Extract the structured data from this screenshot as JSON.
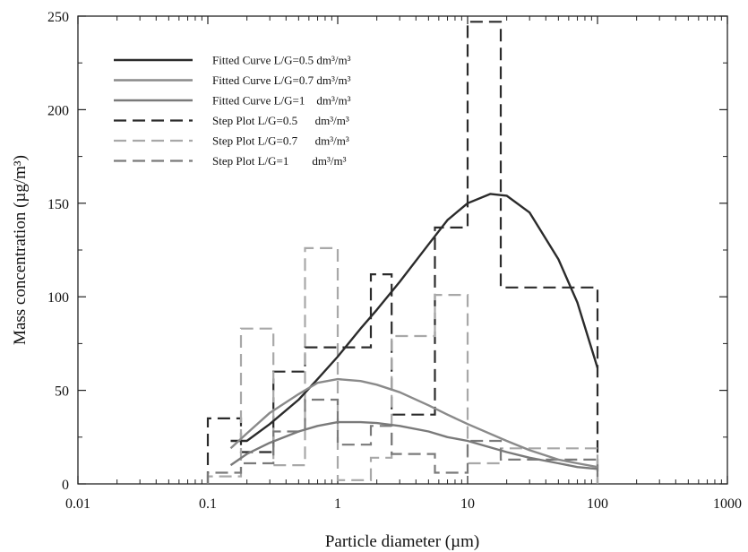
{
  "chart_data": {
    "type": "line",
    "xlabel": "Particle diameter (µm)",
    "ylabel": "Mass concentration (µg/m³)",
    "xscale": "log",
    "xlim": [
      0.01,
      1000
    ],
    "ylim": [
      0,
      250
    ],
    "xticks": [
      0.01,
      0.1,
      1,
      10,
      100,
      1000
    ],
    "xtick_labels": [
      "0.01",
      "0.1",
      "1",
      "10",
      "100",
      "1000"
    ],
    "yticks": [
      0,
      50,
      100,
      150,
      200,
      250
    ],
    "ytick_labels": [
      "0",
      "50",
      "100",
      "150",
      "200",
      "250"
    ],
    "grid": false,
    "legend_position": "top-left",
    "series": [
      {
        "name": "Fitted Curve L/G=0.5 dm³/m³",
        "kind": "curve",
        "color": "#2b2b2b",
        "x": [
          0.15,
          0.2,
          0.3,
          0.5,
          0.7,
          1,
          1.5,
          2,
          3,
          5,
          7,
          10,
          15,
          20,
          30,
          50,
          70,
          100
        ],
        "y": [
          23,
          23,
          32,
          45,
          56,
          68,
          83,
          93,
          108,
          128,
          141,
          150,
          155,
          154,
          145,
          120,
          97,
          62
        ]
      },
      {
        "name": "Fitted Curve L/G=0.7 dm³/m³",
        "kind": "curve",
        "color": "#8a8a8a",
        "x": [
          0.15,
          0.2,
          0.3,
          0.5,
          0.7,
          1,
          1.5,
          2,
          3,
          5,
          7,
          10,
          20,
          30,
          50,
          70,
          100
        ],
        "y": [
          19,
          27,
          38,
          48,
          54,
          56,
          55,
          53,
          49,
          42,
          37,
          32,
          23,
          18,
          13,
          11,
          9
        ]
      },
      {
        "name": "Fitted Curve L/G=1    dm³/m³",
        "kind": "curve",
        "color": "#7a7a7a",
        "x": [
          0.15,
          0.2,
          0.3,
          0.5,
          0.7,
          1,
          1.5,
          2,
          3,
          5,
          7,
          10,
          20,
          30,
          50,
          70,
          100
        ],
        "y": [
          10,
          16,
          22,
          28,
          31,
          33,
          33,
          32.5,
          31,
          28,
          25,
          23,
          17,
          14,
          11,
          9,
          8
        ]
      },
      {
        "name": "Step Plot L/G=0.5      dm³/m³",
        "kind": "step",
        "color": "#2b2b2b",
        "edges": [
          0.1,
          0.18,
          0.32,
          0.56,
          1,
          1.8,
          2.6,
          5.6,
          10,
          18,
          100
        ],
        "values": [
          35,
          17,
          60,
          73,
          73,
          112,
          37,
          137,
          247,
          105
        ]
      },
      {
        "name": "Step Plot L/G=0.7      dm³/m³",
        "kind": "step",
        "color": "#a8a8a8",
        "edges": [
          0.1,
          0.18,
          0.32,
          0.56,
          1,
          1.8,
          2.6,
          5.6,
          10,
          18,
          100
        ],
        "values": [
          4,
          83,
          10,
          126,
          2,
          14,
          79,
          101,
          11,
          19
        ]
      },
      {
        "name": "Step Plot L/G=1        dm³/m³",
        "kind": "step",
        "color": "#7a7a7a",
        "edges": [
          0.1,
          0.18,
          0.32,
          0.56,
          1,
          1.8,
          2.6,
          5.6,
          10,
          18,
          100
        ],
        "values": [
          6,
          11,
          28,
          45,
          21,
          31,
          16,
          6,
          23,
          13
        ]
      }
    ]
  }
}
